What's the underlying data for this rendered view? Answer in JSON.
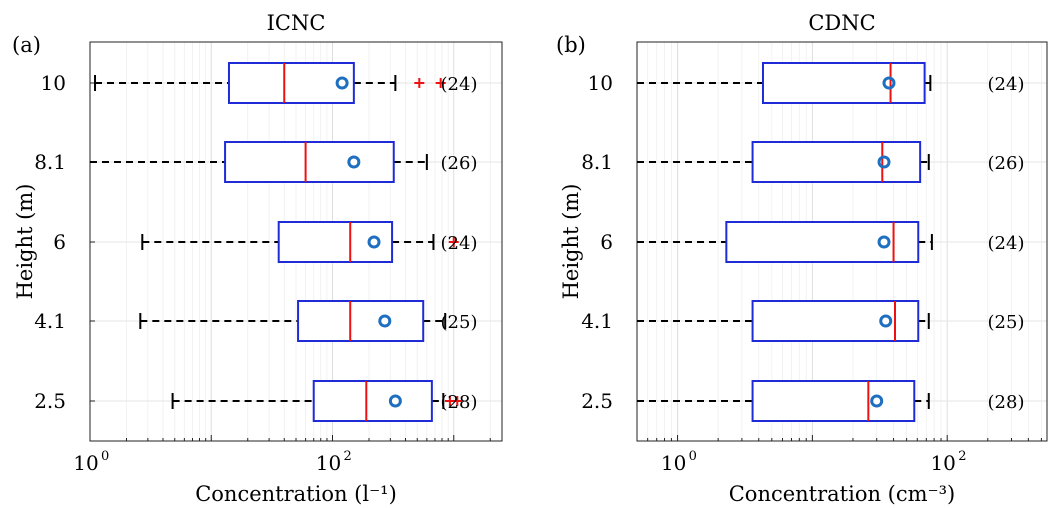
{
  "chart_data": [
    {
      "type": "boxplot",
      "panel_label": "(a)",
      "title": "ICNC",
      "xlabel": "Concentration (l⁻¹)",
      "ylabel": "Height (m)",
      "x_scale": "log",
      "xlim": [
        1,
        2500
      ],
      "x_tick_labels": [
        {
          "value": 1,
          "base": "10",
          "exp": "0"
        },
        {
          "value": 100,
          "base": "10",
          "exp": "2"
        }
      ],
      "grid": true,
      "categories": [
        "10",
        "8.1",
        "6",
        "4.1",
        "2.5"
      ],
      "boxes": [
        {
          "height": "10",
          "whisker_low": 1.1,
          "q1": 14,
          "median": 40,
          "q3": 150,
          "whisker_high": 330,
          "mean": 120,
          "outliers": [
            520,
            780
          ],
          "n_label": "(24)"
        },
        {
          "height": "8.1",
          "whisker_low": 0.25,
          "q1": 13,
          "median": 60,
          "q3": 320,
          "whisker_high": 600,
          "mean": 150,
          "outliers": [],
          "n_label": "(26)"
        },
        {
          "height": "6",
          "whisker_low": 2.7,
          "q1": 36,
          "median": 140,
          "q3": 310,
          "whisker_high": 680,
          "mean": 220,
          "outliers": [
            1000
          ],
          "n_label": "(24)"
        },
        {
          "height": "4.1",
          "whisker_low": 2.6,
          "q1": 52,
          "median": 140,
          "q3": 560,
          "whisker_high": 850,
          "mean": 270,
          "outliers": [],
          "n_label": "(25)"
        },
        {
          "height": "2.5",
          "whisker_low": 4.8,
          "q1": 70,
          "median": 190,
          "q3": 660,
          "whisker_high": 820,
          "mean": 330,
          "outliers": [
            930,
            1070
          ],
          "n_label": "(28)"
        }
      ]
    },
    {
      "type": "boxplot",
      "panel_label": "(b)",
      "title": "CDNC",
      "xlabel": "Concentration (cm⁻³)",
      "ylabel": "Height (m)",
      "x_scale": "log",
      "xlim": [
        0.5,
        550
      ],
      "x_tick_labels": [
        {
          "value": 1,
          "base": "10",
          "exp": "0"
        },
        {
          "value": 100,
          "base": "10",
          "exp": "2"
        }
      ],
      "grid": true,
      "categories": [
        "10",
        "8.1",
        "6",
        "4.1",
        "2.5"
      ],
      "boxes": [
        {
          "height": "10",
          "whisker_low": 0.25,
          "q1": 4.3,
          "median": 38,
          "q3": 68,
          "whisker_high": 75,
          "mean": 37,
          "outliers": [],
          "n_label": "(24)"
        },
        {
          "height": "8.1",
          "whisker_low": 0.25,
          "q1": 3.6,
          "median": 33,
          "q3": 63,
          "whisker_high": 73,
          "mean": 34,
          "outliers": [],
          "n_label": "(26)"
        },
        {
          "height": "6",
          "whisker_low": 0.25,
          "q1": 2.3,
          "median": 40,
          "q3": 61,
          "whisker_high": 77,
          "mean": 34,
          "outliers": [],
          "n_label": "(24)"
        },
        {
          "height": "4.1",
          "whisker_low": 0.25,
          "q1": 3.6,
          "median": 41,
          "q3": 61,
          "whisker_high": 73,
          "mean": 35,
          "outliers": [],
          "n_label": "(25)"
        },
        {
          "height": "2.5",
          "whisker_low": 0.25,
          "q1": 3.6,
          "median": 26,
          "q3": 57,
          "whisker_high": 73,
          "mean": 30,
          "outliers": [],
          "n_label": "(28)"
        }
      ]
    }
  ]
}
